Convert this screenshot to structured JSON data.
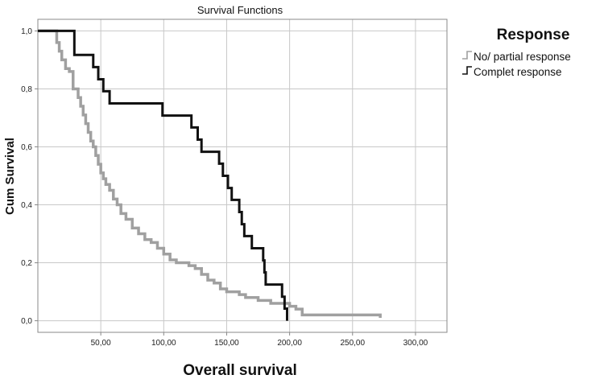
{
  "chart_data": {
    "type": "line",
    "title": "Survival Functions",
    "xlabel": "Overall survival",
    "ylabel": "Cum Survival",
    "xlim": [
      0,
      325
    ],
    "ylim": [
      -0.04,
      1.04
    ],
    "x_ticks": [
      50,
      100,
      150,
      200,
      250,
      300
    ],
    "x_tick_labels": [
      "50,00",
      "100,00",
      "150,00",
      "200,00",
      "250,00",
      "300,00"
    ],
    "y_ticks": [
      0,
      0.2,
      0.4,
      0.6,
      0.8,
      1.0
    ],
    "y_tick_labels": [
      "0,0",
      "0,2",
      "0,4",
      "0,6",
      "0,8",
      "1,0"
    ],
    "grid": true,
    "legend": {
      "title": "Response",
      "position": "right"
    },
    "series": [
      {
        "name": "No/ partial response",
        "color": "#a0a0a0",
        "step": true,
        "x": [
          0,
          15,
          17,
          19,
          22,
          25,
          28,
          32,
          34,
          36,
          38,
          40,
          42,
          44,
          46,
          48,
          50,
          52,
          54,
          57,
          60,
          63,
          66,
          70,
          75,
          80,
          85,
          90,
          95,
          100,
          105,
          110,
          120,
          125,
          130,
          135,
          140,
          145,
          150,
          160,
          165,
          175,
          185,
          200,
          205,
          210,
          272
        ],
        "y": [
          1.0,
          0.96,
          0.93,
          0.9,
          0.87,
          0.86,
          0.8,
          0.77,
          0.74,
          0.71,
          0.68,
          0.65,
          0.62,
          0.6,
          0.57,
          0.54,
          0.51,
          0.49,
          0.47,
          0.45,
          0.42,
          0.4,
          0.37,
          0.35,
          0.32,
          0.3,
          0.28,
          0.27,
          0.25,
          0.23,
          0.21,
          0.2,
          0.19,
          0.18,
          0.16,
          0.14,
          0.13,
          0.11,
          0.1,
          0.09,
          0.08,
          0.07,
          0.06,
          0.05,
          0.04,
          0.02,
          0.01
        ]
      },
      {
        "name": "Complet response",
        "color": "#111111",
        "step": true,
        "x": [
          0,
          29,
          44,
          48,
          52,
          57,
          99,
          122,
          127,
          130,
          134,
          144,
          147,
          151,
          154,
          160,
          162,
          164,
          170,
          179,
          180,
          181,
          194,
          196,
          198
        ],
        "y": [
          1.0,
          0.917,
          0.875,
          0.833,
          0.792,
          0.75,
          0.708,
          0.667,
          0.625,
          0.583,
          0.583,
          0.542,
          0.5,
          0.458,
          0.417,
          0.375,
          0.333,
          0.292,
          0.25,
          0.208,
          0.167,
          0.125,
          0.083,
          0.042,
          0.0
        ]
      }
    ]
  }
}
